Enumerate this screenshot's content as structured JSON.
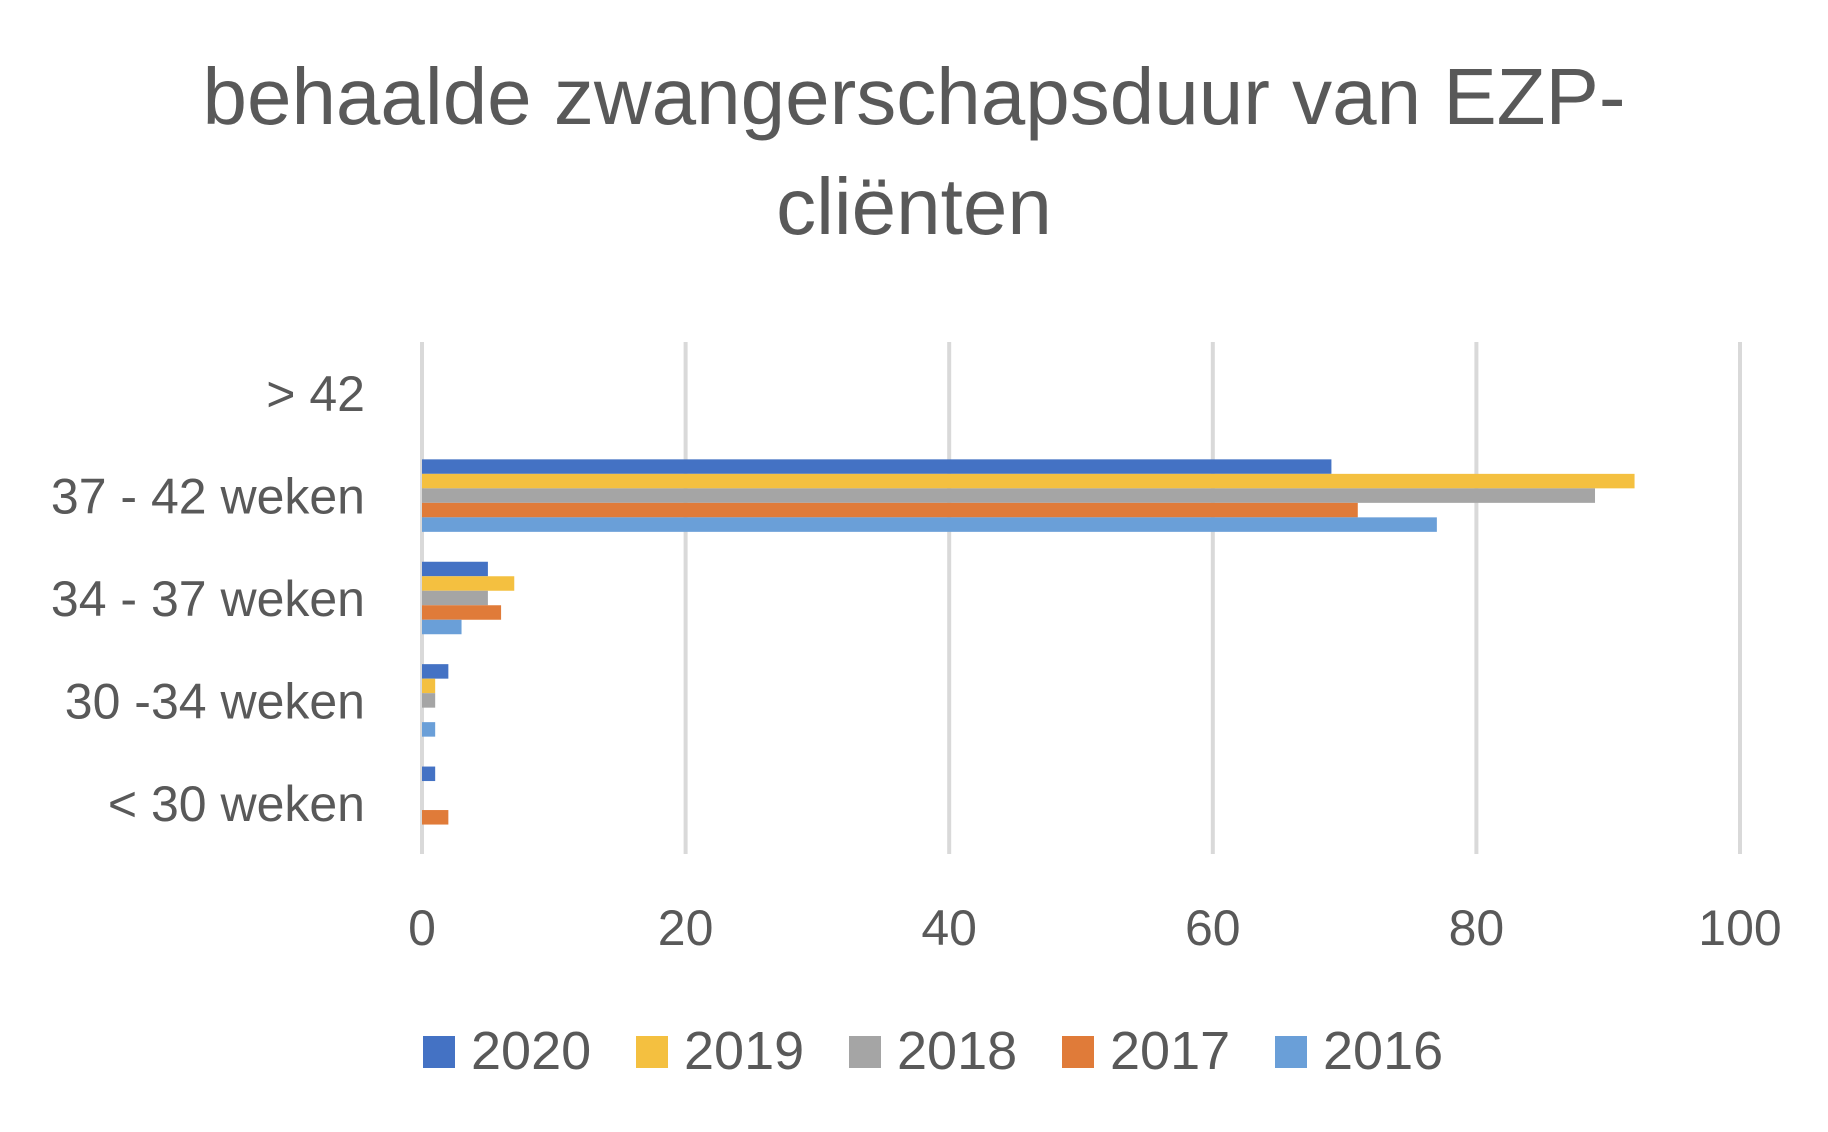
{
  "chart_data": {
    "type": "bar",
    "orientation": "horizontal",
    "title": "behaalde zwangerschapsduur van EZP-cliënten",
    "title_lines": [
      "behaalde zwangerschapsduur van EZP-",
      "cliënten"
    ],
    "categories": [
      "> 42",
      "37 - 42 weken",
      "34 - 37 weken",
      "30 -34 weken",
      "< 30 weken"
    ],
    "series": [
      {
        "name": "2020",
        "color": "#4472C4",
        "values": [
          0,
          69,
          5,
          2,
          1
        ]
      },
      {
        "name": "2019",
        "color": "#F4C040",
        "values": [
          0,
          92,
          7,
          1,
          0
        ]
      },
      {
        "name": "2018",
        "color": "#A5A5A5",
        "values": [
          0,
          89,
          5,
          1,
          0
        ]
      },
      {
        "name": "2017",
        "color": "#E07B39",
        "values": [
          0,
          71,
          6,
          0,
          2
        ]
      },
      {
        "name": "2016",
        "color": "#6A9FD8",
        "values": [
          0,
          77,
          3,
          1,
          0
        ]
      }
    ],
    "xlim": [
      0,
      100
    ],
    "xticks": [
      0,
      20,
      40,
      60,
      80,
      100
    ],
    "xlabel": "",
    "ylabel": "",
    "grid": true,
    "legend_position": "bottom"
  }
}
